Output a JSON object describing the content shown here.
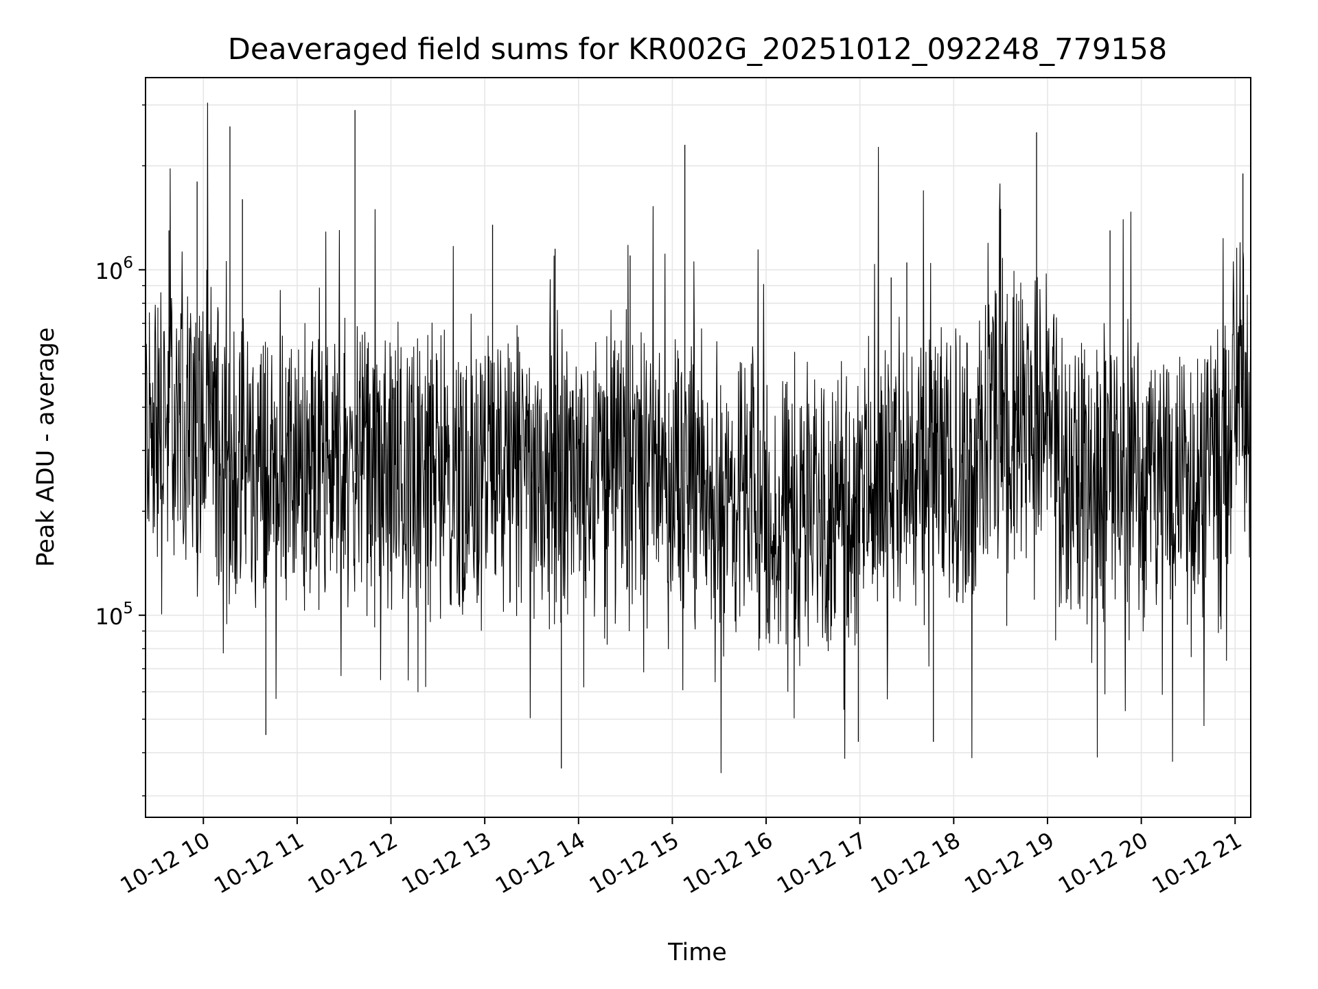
{
  "chart_data": {
    "type": "line",
    "title": "Deaveraged field sums for KR002G_20251012_092248_779158",
    "xlabel": "Time",
    "ylabel": "Peak ADU - average",
    "x_tick_labels": [
      "10-12 10",
      "10-12 11",
      "10-12 12",
      "10-12 13",
      "10-12 14",
      "10-12 15",
      "10-12 16",
      "10-12 17",
      "10-12 18",
      "10-12 19",
      "10-12 20",
      "10-12 21"
    ],
    "y_tick_labels": [
      {
        "value": 100000,
        "base": "10",
        "exp": "5"
      },
      {
        "value": 1000000,
        "base": "10",
        "exp": "6"
      }
    ],
    "x_range": [
      "2025-10-12 09:23",
      "2025-10-12 21:10"
    ],
    "yscale": "log",
    "ylim": [
      26000,
      3600000
    ],
    "grid": true,
    "series_color": "#000000",
    "grid_color": "#e6e6e6",
    "series": [
      {
        "values_approx": [
          [
            "2025-10-12 09:23",
            350000
          ],
          [
            "2025-10-12 09:30",
            300000
          ],
          [
            "2025-10-12 09:38",
            1300000
          ],
          [
            "2025-10-12 09:45",
            450000
          ],
          [
            "2025-10-12 09:56",
            1800000
          ],
          [
            "2025-10-12 10:15",
            300000
          ],
          [
            "2025-10-12 10:17",
            2600000
          ],
          [
            "2025-10-12 10:25",
            1600000
          ],
          [
            "2025-10-12 10:40",
            45000
          ],
          [
            "2025-10-12 11:00",
            250000
          ],
          [
            "2025-10-12 11:37",
            2900000
          ],
          [
            "2025-10-12 12:00",
            250000
          ],
          [
            "2025-10-12 12:40",
            260000
          ],
          [
            "2025-10-12 13:05",
            1350000
          ],
          [
            "2025-10-12 13:30",
            250000
          ],
          [
            "2025-10-12 13:45",
            1150000
          ],
          [
            "2025-10-12 13:49",
            36000
          ],
          [
            "2025-10-12 14:30",
            240000
          ],
          [
            "2025-10-12 14:33",
            1100000
          ],
          [
            "2025-10-12 15:08",
            2300000
          ],
          [
            "2025-10-12 15:30",
            220000
          ],
          [
            "2025-10-12 16:10",
            220000
          ],
          [
            "2025-10-12 16:50",
            200000
          ],
          [
            "2025-10-12 16:59",
            43000
          ],
          [
            "2025-10-12 17:20",
            950000
          ],
          [
            "2025-10-12 17:30",
            1050000
          ],
          [
            "2025-10-12 17:47",
            43000
          ],
          [
            "2025-10-12 18:15",
            300000
          ],
          [
            "2025-10-12 18:30",
            1500000
          ],
          [
            "2025-10-12 18:53",
            2500000
          ],
          [
            "2025-10-12 19:20",
            220000
          ],
          [
            "2025-10-12 19:40",
            1300000
          ],
          [
            "2025-10-12 20:00",
            200000
          ],
          [
            "2025-10-12 20:30",
            280000
          ],
          [
            "2025-10-12 20:55",
            250000
          ],
          [
            "2025-10-12 21:05",
            1900000
          ],
          [
            "2025-10-12 21:10",
            700000
          ]
        ]
      }
    ]
  }
}
